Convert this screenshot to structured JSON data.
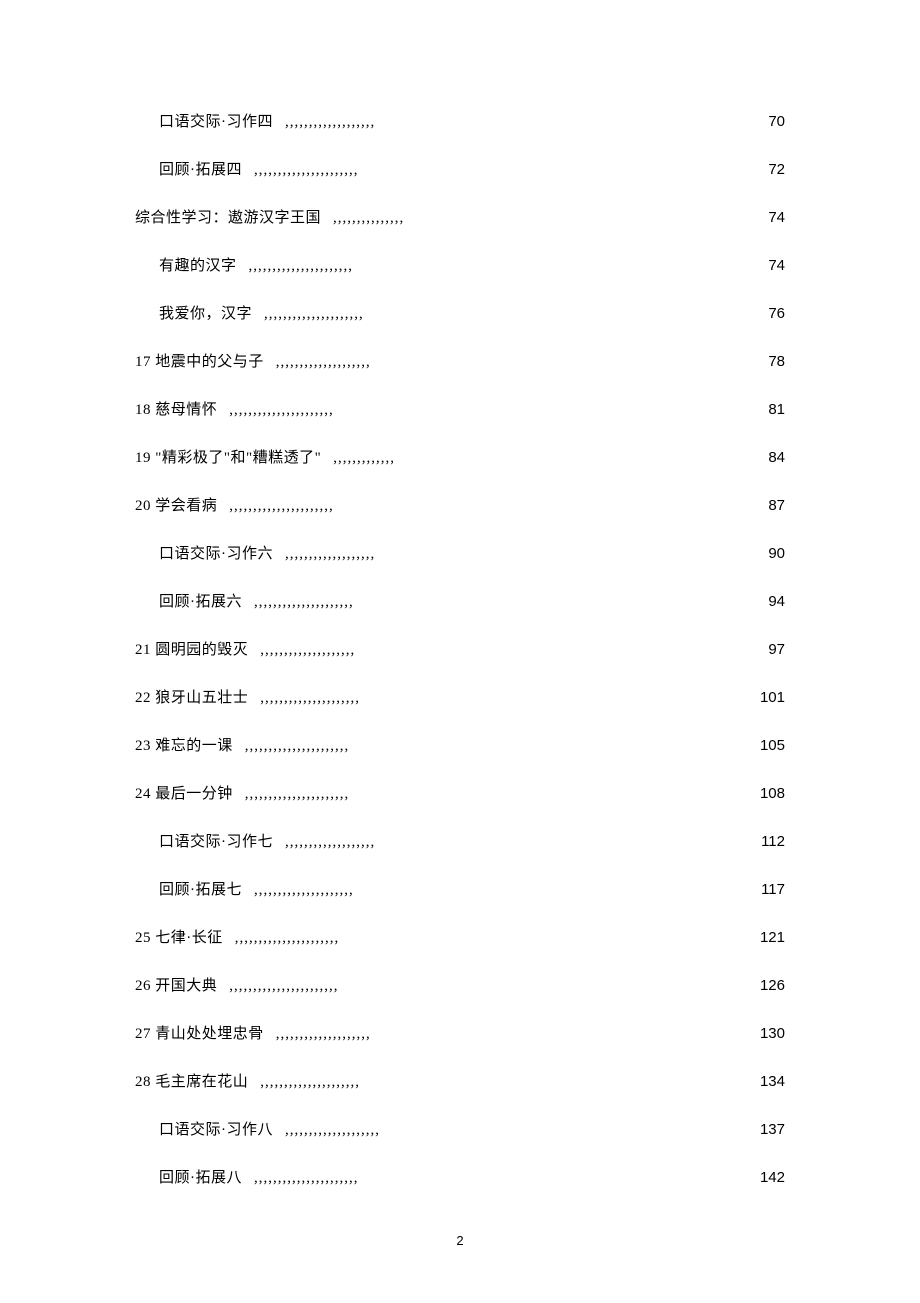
{
  "page_number": "2",
  "toc_entries": [
    {
      "title": "口语交际·习作四",
      "page": "70",
      "indented": true,
      "dots": ",,,,,,,,,,,,,,,,,,,"
    },
    {
      "title": "回顾·拓展四",
      "page": "72",
      "indented": true,
      "dots": ",,,,,,,,,,,,,,,,,,,,,,"
    },
    {
      "title": "综合性学习：遨游汉字王国",
      "page": "74",
      "indented": false,
      "dots": ",,,,,,,,,,,,,,,"
    },
    {
      "title": "有趣的汉字",
      "page": "74",
      "indented": true,
      "dots": ",,,,,,,,,,,,,,,,,,,,,,"
    },
    {
      "title": "我爱你，汉字",
      "page": "76",
      "indented": true,
      "dots": ",,,,,,,,,,,,,,,,,,,,,"
    },
    {
      "title": "17 地震中的父与子",
      "page": "78",
      "indented": false,
      "dots": ",,,,,,,,,,,,,,,,,,,,"
    },
    {
      "title": "18 慈母情怀",
      "page": "81",
      "indented": false,
      "dots": ",,,,,,,,,,,,,,,,,,,,,,"
    },
    {
      "title": "19 \"精彩极了\"和\"糟糕透了\"",
      "page": "84",
      "indented": false,
      "dots": ",,,,,,,,,,,,,"
    },
    {
      "title": "20 学会看病",
      "page": "87",
      "indented": false,
      "dots": ",,,,,,,,,,,,,,,,,,,,,,"
    },
    {
      "title": "口语交际·习作六",
      "page": "90",
      "indented": true,
      "dots": ",,,,,,,,,,,,,,,,,,,"
    },
    {
      "title": "回顾·拓展六",
      "page": "94",
      "indented": true,
      "dots": ",,,,,,,,,,,,,,,,,,,,,"
    },
    {
      "title": "21 圆明园的毁灭",
      "page": "97",
      "indented": false,
      "dots": ",,,,,,,,,,,,,,,,,,,,"
    },
    {
      "title": "22 狼牙山五壮士",
      "page": "101",
      "indented": false,
      "dots": ",,,,,,,,,,,,,,,,,,,,,"
    },
    {
      "title": "23 难忘的一课",
      "page": "105",
      "indented": false,
      "dots": ",,,,,,,,,,,,,,,,,,,,,,"
    },
    {
      "title": "24 最后一分钟",
      "page": "108",
      "indented": false,
      "dots": ",,,,,,,,,,,,,,,,,,,,,,"
    },
    {
      "title": "口语交际·习作七",
      "page": "112",
      "indented": true,
      "dots": ",,,,,,,,,,,,,,,,,,,"
    },
    {
      "title": "回顾·拓展七",
      "page": "117",
      "indented": true,
      "dots": ",,,,,,,,,,,,,,,,,,,,,"
    },
    {
      "title": "25 七律·长征",
      "page": "121",
      "indented": false,
      "dots": ",,,,,,,,,,,,,,,,,,,,,,"
    },
    {
      "title": "26 开国大典",
      "page": "126",
      "indented": false,
      "dots": ",,,,,,,,,,,,,,,,,,,,,,,"
    },
    {
      "title": "27 青山处处埋忠骨",
      "page": "130",
      "indented": false,
      "dots": ",,,,,,,,,,,,,,,,,,,,"
    },
    {
      "title": "28 毛主席在花山",
      "page": "134",
      "indented": false,
      "dots": ",,,,,,,,,,,,,,,,,,,,,"
    },
    {
      "title": "口语交际·习作八",
      "page": "137",
      "indented": true,
      "dots": ",,,,,,,,,,,,,,,,,,,,"
    },
    {
      "title": "回顾·拓展八",
      "page": "142",
      "indented": true,
      "dots": ",,,,,,,,,,,,,,,,,,,,,,"
    }
  ]
}
